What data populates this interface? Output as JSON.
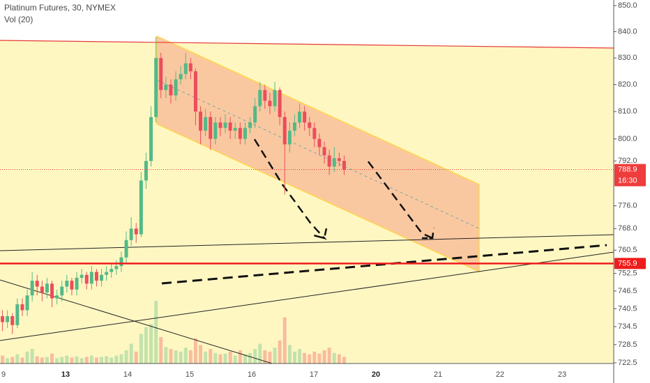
{
  "chart_data": {
    "type": "candlestick",
    "title": "Platinum Futures, 30, NYMEX",
    "subtitle": "Vol (20)",
    "log": true,
    "up_color": "#53b987",
    "down_color": "#eb4d5c",
    "ylim": [
      720.9,
      852.2
    ],
    "yticks": [
      {
        "value": 850,
        "label": "850.0"
      },
      {
        "value": 840,
        "label": "840.0"
      },
      {
        "value": 830,
        "label": "830.0"
      },
      {
        "value": 820,
        "label": "820.0"
      },
      {
        "value": 810,
        "label": "810.0"
      },
      {
        "value": 800,
        "label": "800.0"
      },
      {
        "value": 792,
        "label": "792.0"
      },
      {
        "value": 776,
        "label": "776.0"
      },
      {
        "value": 768,
        "label": "768.0"
      },
      760.5,
      752.5,
      746.5,
      740.5,
      734.5,
      728.5,
      722.5
    ],
    "x_labels": [
      "9",
      "13",
      "14",
      "15",
      "16",
      "17",
      "20",
      "21",
      "22",
      "23"
    ],
    "last_price": 788.9,
    "last_price_label": "788.9",
    "countdown": "16:30",
    "level_price": 755.9,
    "level_label": "755.9",
    "open": [
      738,
      736,
      738,
      735,
      742,
      740,
      745,
      750,
      748,
      746,
      749,
      744,
      745,
      748,
      750,
      747,
      751,
      752,
      749,
      753,
      750,
      752,
      753,
      754,
      755,
      758,
      764,
      768,
      766,
      785,
      792,
      808,
      830,
      818,
      820,
      816,
      822,
      824,
      828,
      825,
      810,
      803,
      808,
      800,
      806,
      804,
      806,
      803,
      804,
      800,
      804,
      806,
      812,
      818,
      814,
      812,
      818,
      808,
      798,
      803,
      806,
      810,
      806,
      804,
      800,
      797,
      794,
      790,
      793,
      792
    ],
    "high": [
      740,
      740,
      739,
      744,
      744,
      747,
      753,
      752,
      750,
      751,
      750,
      747,
      750,
      752,
      751,
      753,
      754,
      753,
      755,
      754,
      754,
      755,
      756,
      757,
      760,
      767,
      772,
      770,
      788,
      795,
      812,
      838,
      832,
      823,
      822,
      825,
      827,
      832,
      830,
      826,
      812,
      811,
      810,
      808,
      808,
      809,
      808,
      806,
      806,
      806,
      808,
      815,
      821,
      820,
      817,
      821,
      819,
      810,
      806,
      809,
      813,
      812,
      808,
      806,
      802,
      799,
      796,
      797,
      795,
      794
    ],
    "low": [
      733,
      734,
      732,
      734,
      738,
      738,
      743,
      745,
      743,
      744,
      741,
      742,
      743,
      746,
      745,
      745,
      749,
      747,
      747,
      748,
      748,
      750,
      751,
      752,
      753,
      756,
      762,
      763,
      765,
      782,
      790,
      806,
      815,
      815,
      813,
      814,
      820,
      822,
      822,
      805,
      798,
      801,
      796,
      798,
      801,
      802,
      800,
      800,
      798,
      798,
      802,
      804,
      810,
      811,
      809,
      810,
      805,
      780,
      795,
      801,
      804,
      803,
      801,
      797,
      794,
      791,
      787,
      788,
      790,
      787
    ],
    "close": [
      736,
      738,
      735,
      742,
      740,
      745,
      750,
      748,
      746,
      749,
      744,
      745,
      748,
      750,
      747,
      751,
      752,
      749,
      753,
      750,
      752,
      753,
      754,
      755,
      758,
      764,
      768,
      766,
      785,
      792,
      808,
      830,
      818,
      820,
      816,
      822,
      824,
      828,
      825,
      810,
      803,
      808,
      800,
      806,
      804,
      806,
      803,
      804,
      800,
      804,
      806,
      812,
      818,
      814,
      812,
      818,
      808,
      798,
      803,
      806,
      810,
      806,
      804,
      800,
      797,
      794,
      790,
      793,
      792,
      788.9
    ],
    "volume": [
      12,
      8,
      10,
      14,
      9,
      18,
      22,
      11,
      9,
      10,
      15,
      8,
      10,
      12,
      9,
      11,
      8,
      10,
      12,
      9,
      10,
      11,
      9,
      12,
      14,
      20,
      30,
      18,
      45,
      55,
      60,
      95,
      40,
      25,
      22,
      20,
      18,
      24,
      20,
      38,
      28,
      18,
      22,
      16,
      14,
      15,
      18,
      12,
      20,
      14,
      16,
      22,
      30,
      20,
      18,
      24,
      35,
      70,
      28,
      18,
      22,
      16,
      14,
      18,
      15,
      20,
      24,
      16,
      14,
      10
    ]
  }
}
